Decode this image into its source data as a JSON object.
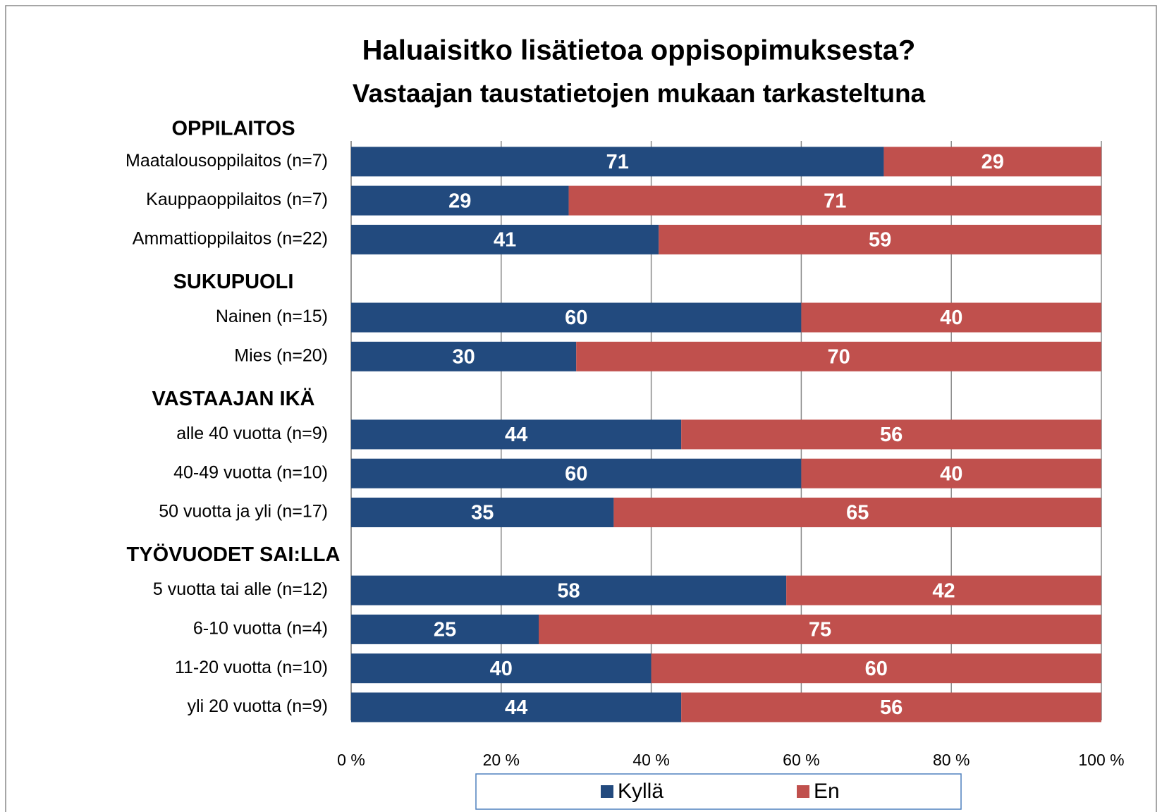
{
  "chart_data": {
    "type": "stacked-bar-horizontal",
    "title": "Haluaisitko lisätietoa oppisopimuksesta?",
    "subtitle": "Vastaajan taustatietojen mukaan tarkasteltuna",
    "categories": [
      "OPPILAITOS",
      "Maatalousoppilaitos (n=7)",
      "Kauppaoppilaitos (n=7)",
      "Ammattioppilaitos (n=22)",
      "SUKUPUOLI",
      "Nainen (n=15)",
      "Mies (n=20)",
      "VASTAAJAN IKÄ",
      "alle 40 vuotta  (n=9)",
      "40-49 vuotta  (n=10)",
      "50 vuotta ja yli (n=17)",
      "TYÖVUODET SAI:LLA",
      "5 vuotta tai alle (n=12)",
      "6-10 vuotta  (n=4)",
      "11-20 vuotta  (n=10)",
      "yli 20 vuotta  (n=9)"
    ],
    "series": [
      {
        "name": "Kyllä",
        "color": "#224a7e",
        "values": [
          null,
          71,
          29,
          41,
          null,
          60,
          30,
          null,
          44,
          60,
          35,
          null,
          58,
          25,
          40,
          44
        ]
      },
      {
        "name": "En",
        "color": "#c0504d",
        "values": [
          null,
          29,
          71,
          59,
          null,
          40,
          70,
          null,
          56,
          40,
          65,
          null,
          42,
          75,
          60,
          56
        ]
      }
    ],
    "xlim": [
      0,
      100
    ],
    "xticks": [
      {
        "value": 0,
        "label": "0 %"
      },
      {
        "value": 20,
        "label": "20 %"
      },
      {
        "value": 40,
        "label": "40 %"
      },
      {
        "value": 60,
        "label": "60 %"
      },
      {
        "value": 80,
        "label": "80 %"
      },
      {
        "value": 100,
        "label": "100 %"
      }
    ],
    "grid": true,
    "legend": "bottom"
  }
}
